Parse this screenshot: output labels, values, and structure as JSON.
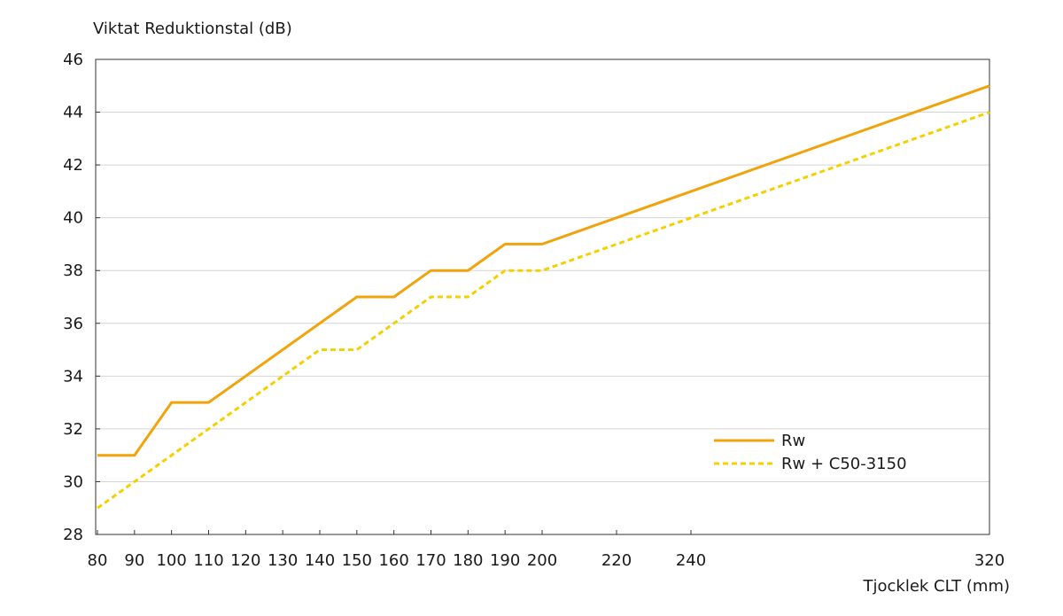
{
  "chart_data": {
    "type": "line",
    "ylabel": "Viktat Reduktionstal (dB)",
    "xlabel": "Tjocklek CLT (mm)",
    "ylim": [
      28,
      46
    ],
    "yticks": [
      28,
      30,
      32,
      34,
      36,
      38,
      40,
      42,
      44,
      46
    ],
    "xticks": [
      80,
      90,
      100,
      110,
      120,
      130,
      140,
      150,
      160,
      170,
      180,
      190,
      200,
      220,
      240,
      320
    ],
    "grid": "horizontal",
    "legend_position": "lower-right",
    "series": [
      {
        "name": "Rw",
        "color": "#F0A30A",
        "style": "solid",
        "x": [
          80,
          90,
          100,
          110,
          150,
          160,
          170,
          180,
          190,
          200,
          320
        ],
        "y": [
          31,
          31,
          33,
          33,
          37,
          37,
          38,
          38,
          39,
          39,
          45
        ]
      },
      {
        "name": "Rw + C50-3150",
        "color": "#F5D000",
        "style": "dashed",
        "x": [
          80,
          140,
          150,
          170,
          180,
          190,
          200,
          320
        ],
        "y": [
          29,
          35,
          35,
          37,
          37,
          38,
          38,
          44
        ]
      }
    ]
  }
}
